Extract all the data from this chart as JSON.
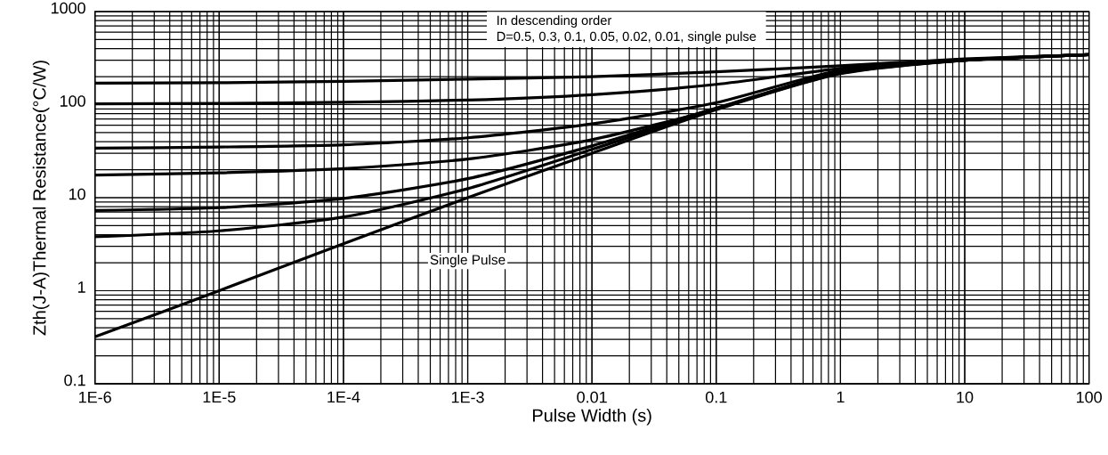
{
  "chart_data": {
    "type": "line",
    "xlabel": "Pulse Width (s)",
    "ylabel": "Zth(J-A)Thermal Resistance(°C/W)",
    "log": "xy",
    "grid": true,
    "marker": "none",
    "line_style": "solid",
    "xlim": [
      1e-06,
      100
    ],
    "ylim": [
      0.1,
      1000
    ],
    "xticks": [
      {
        "value": 1e-06,
        "label": "1E-6"
      },
      {
        "value": 1e-05,
        "label": "1E-5"
      },
      {
        "value": 0.0001,
        "label": "1E-4"
      },
      {
        "value": 0.001,
        "label": "1E-3"
      },
      0.01,
      0.1,
      1,
      10,
      100
    ],
    "yticks": [
      0.1,
      1,
      10,
      100,
      1000
    ],
    "x": [
      1e-06,
      1e-05,
      0.0001,
      0.001,
      0.01,
      0.1,
      1,
      10,
      100
    ],
    "series": [
      {
        "color": "#000000",
        "values": [
          170,
          172,
          178,
          188,
          200,
          225,
          262,
          310,
          345
        ]
      },
      {
        "color": "#000000",
        "values": [
          102,
          103,
          106,
          112,
          128,
          165,
          245,
          305,
          345
        ]
      },
      {
        "color": "#000000",
        "values": [
          34,
          35,
          37,
          44,
          62,
          105,
          235,
          300,
          345
        ]
      },
      {
        "color": "#000000",
        "values": [
          17.5,
          18.5,
          20.5,
          26,
          42,
          90,
          228,
          300,
          345
        ]
      },
      {
        "color": "#000000",
        "values": [
          7.3,
          7.8,
          9.8,
          16,
          36,
          92,
          222,
          300,
          345
        ]
      },
      {
        "color": "#000000",
        "values": [
          3.8,
          4.4,
          6.2,
          12.5,
          33,
          90,
          218,
          300,
          345
        ]
      },
      {
        "color": "#000000",
        "values": [
          0.32,
          1,
          3.2,
          10,
          30,
          88,
          215,
          300,
          345
        ]
      }
    ],
    "annotations": [
      "In descending order",
      "D=0.5, 0.3, 0.1, 0.05, 0.02, 0.01, single pulse",
      "Single Pulse"
    ]
  }
}
